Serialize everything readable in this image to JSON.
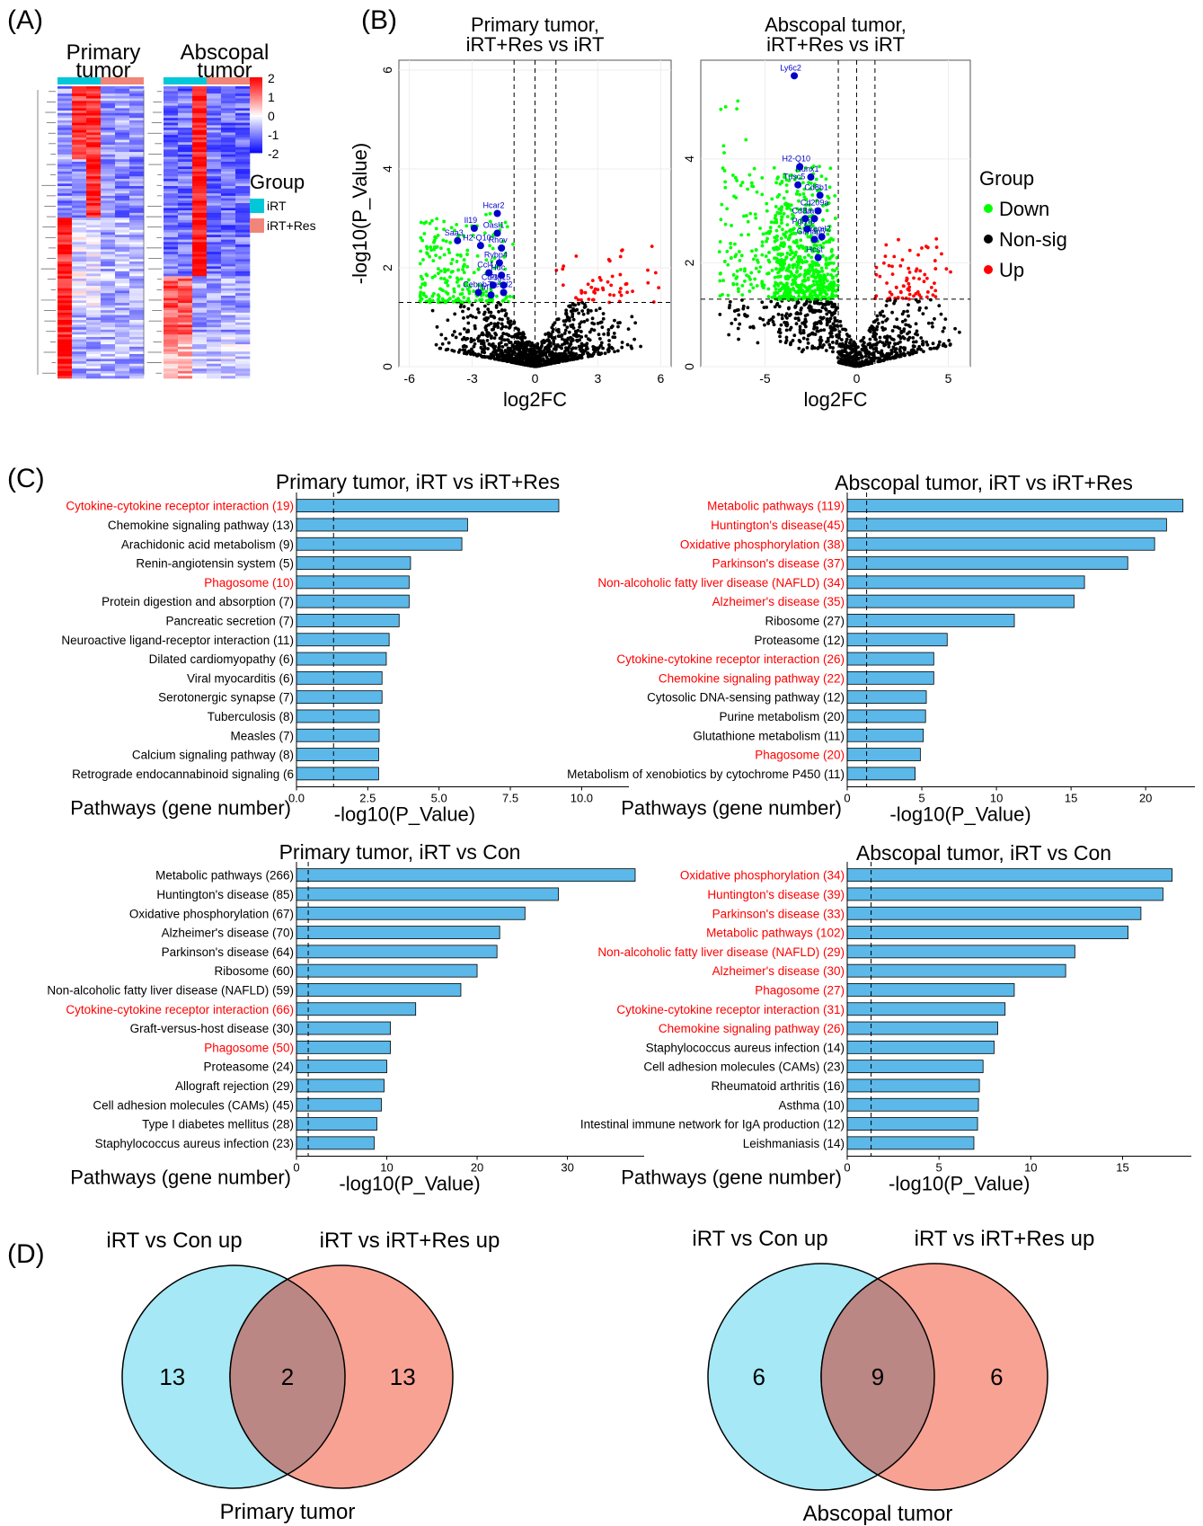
{
  "panels": {
    "A": "(A)",
    "B": "(B)",
    "C": "(C)",
    "D": "(D)"
  },
  "colors": {
    "bar": "#5BB8E8",
    "highlight": "#FF0000",
    "down": "#00FF00",
    "up": "#FF0000",
    "nonsig": "#000000",
    "gene": "#0000CC",
    "iRT": "#00C8D8",
    "iRTRes": "#F2857A",
    "vennLeft": "#A6E8F5",
    "vennRight": "#F8A294",
    "vennOverlap": "#BA8784"
  },
  "heatmap": {
    "primary_title_1": "Primary",
    "primary_title_2": "tumor",
    "abscopal_title_1": "Abscopal",
    "abscopal_title_2": "tumor",
    "scale_ticks": [
      "2",
      "1",
      "0",
      "-1",
      "-2"
    ],
    "legend_title": "Group",
    "legend_items": [
      "iRT",
      "iRT+Res"
    ]
  },
  "chart_data": [
    {
      "type": "scatter",
      "title": "Primary tumor,\niRT+Res vs iRT",
      "xlabel": "log2FC",
      "ylabel": "-log10(P_Value)",
      "xlim": [
        -6.5,
        6.5
      ],
      "ylim": [
        0,
        6.2
      ],
      "xticks": [
        "-6",
        "-3",
        "0",
        "3",
        "6"
      ],
      "yticks": [
        "0",
        "2",
        "4",
        "6"
      ],
      "vlines": [
        -1,
        0,
        1
      ],
      "hline": 1.3,
      "labeled_genes": [
        {
          "name": "Hcar2",
          "x": -1.8,
          "y": 3.1
        },
        {
          "name": "Il19",
          "x": -2.9,
          "y": 2.8
        },
        {
          "name": "Oasl1",
          "x": -1.8,
          "y": 2.7
        },
        {
          "name": "Saa3",
          "x": -3.7,
          "y": 2.55
        },
        {
          "name": "H2-Q10",
          "x": -2.6,
          "y": 2.45
        },
        {
          "name": "Rhov",
          "x": -1.6,
          "y": 2.4
        },
        {
          "name": "Rybp4",
          "x": -1.7,
          "y": 2.1
        },
        {
          "name": "Ccl4",
          "x": -2.2,
          "y": 1.9
        },
        {
          "name": "Hdc",
          "x": -1.6,
          "y": 1.85
        },
        {
          "name": "Ccl3",
          "x": -2.0,
          "y": 1.65
        },
        {
          "name": "Ptg15",
          "x": -1.5,
          "y": 1.65
        },
        {
          "name": "Cebpb",
          "x": -2.7,
          "y": 1.5
        },
        {
          "name": "Irf7",
          "x": -2.1,
          "y": 1.45
        },
        {
          "name": "Treml2",
          "x": -1.5,
          "y": 1.5
        }
      ]
    },
    {
      "type": "scatter",
      "title": "Abscopal tumor,\niRT+Res vs iRT",
      "xlabel": "log2FC",
      "ylabel": "",
      "xlim": [
        -8.5,
        6.2
      ],
      "ylim": [
        0,
        5.9
      ],
      "xticks": [
        "-5",
        "0",
        "5"
      ],
      "yticks": [
        "0",
        "2",
        "4"
      ],
      "vlines": [
        -1,
        0,
        1
      ],
      "hline": 1.3,
      "labeled_genes": [
        {
          "name": "Ly6c2",
          "x": -3.4,
          "y": 5.6
        },
        {
          "name": "H2-Q10",
          "x": -3.1,
          "y": 3.85
        },
        {
          "name": "Runx1",
          "x": -2.5,
          "y": 3.65
        },
        {
          "name": "Tusc5",
          "x": -3.2,
          "y": 3.5
        },
        {
          "name": "Cd8b1",
          "x": -2.0,
          "y": 3.3
        },
        {
          "name": "Cd209a",
          "x": -2.1,
          "y": 3.0
        },
        {
          "name": "Cd8a",
          "x": -2.8,
          "y": 2.85
        },
        {
          "name": "Lat",
          "x": -2.3,
          "y": 2.85
        },
        {
          "name": "Pglyrp",
          "x": -2.7,
          "y": 2.65
        },
        {
          "name": "Gimap5",
          "x": -2.3,
          "y": 2.45
        },
        {
          "name": "Treml2",
          "x": -1.9,
          "y": 2.5
        },
        {
          "name": "Hcst",
          "x": -2.1,
          "y": 2.1
        }
      ],
      "legend_title": "Group",
      "legend": [
        "Down",
        "Non-sig",
        "Up"
      ]
    },
    {
      "type": "bar",
      "title": "Primary tumor, iRT vs iRT+Res",
      "ylabel": "Pathways (gene number)",
      "xlabel": "-log10(P_Value)",
      "xlim": [
        0,
        11.5
      ],
      "xticks": [
        "0.0",
        "2.5",
        "5.0",
        "7.5",
        "10.0"
      ],
      "vline": 1.3,
      "categories": [
        "Cytokine-cytokine receptor interaction (19)",
        "Chemokine signaling pathway (13)",
        "Arachidonic acid metabolism (9)",
        "Renin-angiotensin system (5)",
        "Phagosome  (10)",
        "Protein digestion and absorption (7)",
        "Pancreatic secretion (7)",
        "Neuroactive ligand-receptor interaction (11)",
        "Dilated cardiomyopathy (6)",
        "Viral myocarditis (6)",
        "Serotonergic synapse (7)",
        "Tuberculosis (8)",
        "Measles (7)",
        "Calcium signaling pathway (8)",
        "Retrograde endocannabinoid signaling (6"
      ],
      "values": [
        9.2,
        6.0,
        5.8,
        4.0,
        3.95,
        3.95,
        3.6,
        3.25,
        3.15,
        3.0,
        3.0,
        2.9,
        2.9,
        2.88,
        2.88
      ],
      "highlighted": [
        0,
        4
      ]
    },
    {
      "type": "bar",
      "title": "Abscopal tumor, iRT vs iRT+Res",
      "ylabel": "Pathways (gene number)",
      "xlabel": "-log10(P_Value)",
      "xlim": [
        0,
        23
      ],
      "xticks": [
        "0",
        "5",
        "10",
        "15",
        "20"
      ],
      "vline": 1.3,
      "categories": [
        "Metabolic pathways (119)",
        "Huntington's disease(45)",
        "Oxidative phosphorylation (38)",
        "Parkinson's disease (37)",
        "Non-alcoholic fatty liver disease (NAFLD) (34)",
        "Alzheimer's disease (35)",
        "Ribosome (27)",
        "Proteasome (12)",
        "Cytokine-cytokine receptor interaction (26)",
        "Chemokine signaling pathway (22)",
        "Cytosolic DNA-sensing pathway (12)",
        "Purine metabolism (20)",
        "Glutathione metabolism (11)",
        "Phagosome (20)",
        "Metabolism of xenobiotics by cytochrome P450 (11)"
      ],
      "values": [
        22.5,
        21.4,
        20.6,
        18.8,
        15.9,
        15.2,
        11.2,
        6.7,
        5.8,
        5.8,
        5.3,
        5.25,
        5.1,
        4.9,
        4.55
      ],
      "highlighted": [
        0,
        1,
        2,
        3,
        4,
        5,
        8,
        9,
        13
      ]
    },
    {
      "type": "bar",
      "title": "Primary tumor,  iRT vs Con",
      "ylabel": "Pathways (gene number)",
      "xlabel": "-log10(P_Value)",
      "xlim": [
        0,
        38
      ],
      "xticks": [
        "0",
        "10",
        "20",
        "30"
      ],
      "vline": 1.3,
      "categories": [
        "Metabolic pathways (266)",
        "Huntington's disease (85)",
        "Oxidative phosphorylation (67)",
        "Alzheimer's disease (70)",
        "Parkinson's disease (64)",
        "Ribosome (60)",
        "Non-alcoholic fatty liver disease (NAFLD) (59)",
        "Cytokine-cytokine receptor interaction (66)",
        "Graft-versus-host disease (30)",
        "Phagosome (50)",
        "Proteasome (24)",
        "Allograft rejection (29)",
        "Cell adhesion molecules (CAMs) (45)",
        "Type I diabetes mellitus (28)",
        "Staphylococcus aureus infection (23)"
      ],
      "values": [
        37.5,
        29.0,
        25.3,
        22.5,
        22.2,
        20.0,
        18.2,
        13.2,
        10.4,
        10.4,
        10.0,
        9.7,
        9.4,
        8.9,
        8.6
      ],
      "highlighted": [
        7,
        9
      ]
    },
    {
      "type": "bar",
      "title": "Abscopal tumor, iRT vs Con",
      "ylabel": "Pathways (gene number)",
      "xlabel": "-log10(P_Value)",
      "xlim": [
        0,
        18.5
      ],
      "xticks": [
        "0",
        "5",
        "10",
        "15"
      ],
      "vline": 1.3,
      "categories": [
        "Oxidative phosphorylation (34)",
        "Huntington's disease (39)",
        "Parkinson's disease (33)",
        "Metabolic pathways (102)",
        "Non-alcoholic fatty liver disease (NAFLD) (29)",
        "Alzheimer's disease (30)",
        "Phagosome (27)",
        "Cytokine-cytokine receptor interaction (31)",
        "Chemokine signaling pathway (26)",
        "Staphylococcus aureus infection (14)",
        "Cell adhesion molecules (CAMs) (23)",
        "Rheumatoid arthritis (16)",
        "Asthma (10)",
        "Intestinal immune network for IgA production (12)",
        "Leishmaniasis (14)"
      ],
      "values": [
        17.7,
        17.2,
        16.0,
        15.3,
        12.4,
        11.9,
        9.1,
        8.6,
        8.2,
        8.0,
        7.4,
        7.2,
        7.15,
        7.1,
        6.9
      ],
      "highlighted": [
        0,
        1,
        2,
        3,
        4,
        5,
        6,
        7,
        8
      ]
    }
  ],
  "venn": [
    {
      "title": "Primary tumor",
      "left_label": "iRT vs Con up",
      "right_label": "iRT vs iRT+Res up",
      "left_only": "13",
      "overlap": "2",
      "right_only": "13"
    },
    {
      "title": "Abscopal tumor",
      "left_label": "iRT vs Con up",
      "right_label": "iRT vs iRT+Res up",
      "left_only": "6",
      "overlap": "9",
      "right_only": "6"
    }
  ]
}
